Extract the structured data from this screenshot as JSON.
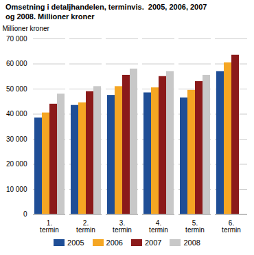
{
  "chart_data": {
    "type": "bar",
    "title": "Omsetning i detaljhandelen, terminvis.  2005, 2006, 2007\nog 2008. Millioner kroner",
    "ylabel": "Millioner kroner",
    "categories": [
      "1.\ntermin",
      "2.\ntermin",
      "3.\ntermin",
      "4.\ntermin",
      "5.\ntermin",
      "6.\ntermin"
    ],
    "series": [
      {
        "name": "2005",
        "color": "#1f4e96",
        "values": [
          38500,
          43500,
          47500,
          48500,
          46500,
          57000
        ]
      },
      {
        "name": "2006",
        "color": "#f5a623",
        "values": [
          40500,
          44500,
          51000,
          50500,
          49500,
          60500
        ]
      },
      {
        "name": "2007",
        "color": "#8b1a1a",
        "values": [
          44000,
          49000,
          55500,
          55000,
          53000,
          63500
        ]
      },
      {
        "name": "2008",
        "color": "#c8c8c8",
        "values": [
          48000,
          51000,
          58000,
          57000,
          55500,
          null
        ]
      }
    ],
    "ylim": [
      0,
      70000
    ],
    "yticks": [
      0,
      {
        "value": 10000,
        "label": "10 000"
      },
      {
        "value": 20000,
        "label": "20 000"
      },
      {
        "value": 30000,
        "label": "30 000"
      },
      {
        "value": 40000,
        "label": "40 000"
      },
      {
        "value": 50000,
        "label": "50 000"
      },
      {
        "value": 60000,
        "label": "60 000"
      },
      {
        "value": 70000,
        "label": "70 000"
      }
    ],
    "grid": true,
    "legend": "bottom"
  }
}
